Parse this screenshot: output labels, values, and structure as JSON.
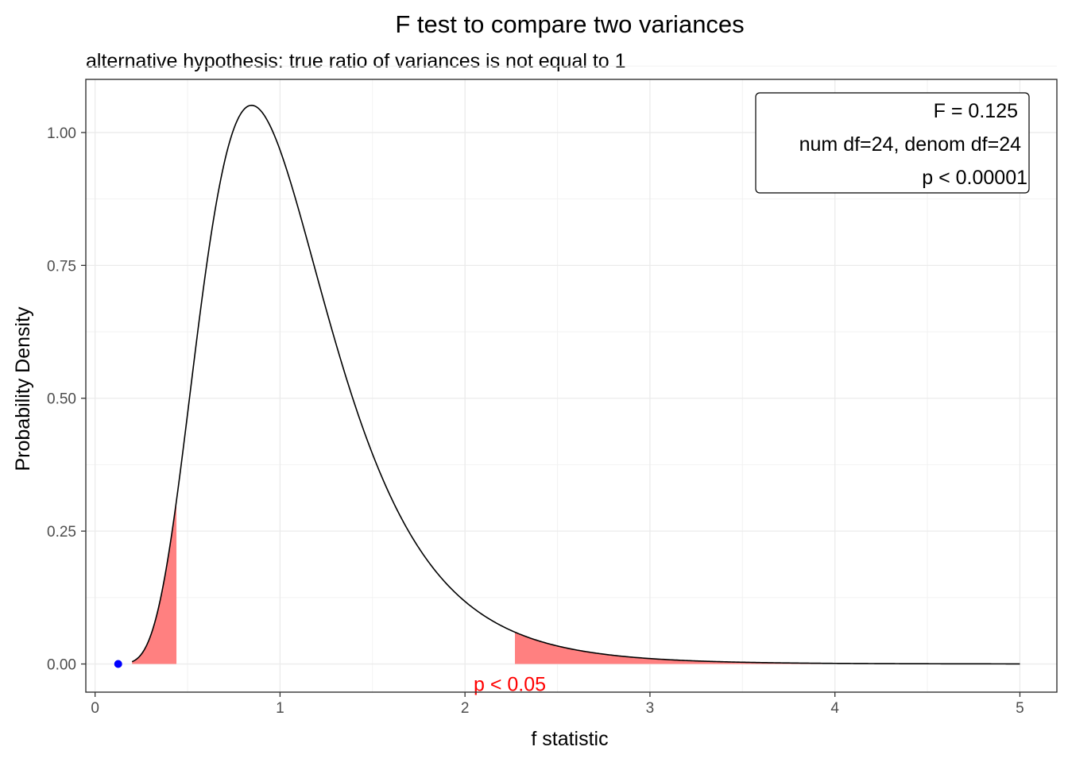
{
  "chart_data": {
    "type": "line",
    "title": "F test to compare two variances",
    "subtitle": "alternative hypothesis: true ratio of variances is not equal to 1",
    "xlabel": "f statistic",
    "ylabel": "Probability Density",
    "xlim": [
      -0.05,
      5.2
    ],
    "ylim": [
      -0.053,
      1.1
    ],
    "x_ticks": [
      0,
      1,
      2,
      3,
      4,
      5
    ],
    "x_tick_labels": [
      "0",
      "1",
      "2",
      "3",
      "4",
      "5"
    ],
    "y_ticks": [
      0.0,
      0.25,
      0.5,
      0.75,
      1.0
    ],
    "y_tick_labels": [
      "0.00",
      "0.25",
      "0.50",
      "0.75",
      "1.00"
    ],
    "grid": true,
    "distribution": {
      "name": "F",
      "df1": 24,
      "df2": 24,
      "x_from": 0.2,
      "x_to": 5.0
    },
    "rejection_regions": [
      {
        "from": 0.2,
        "to": 0.44
      },
      {
        "from": 2.27,
        "to": 5.0
      }
    ],
    "rejection_color": "#ff8080",
    "region_label": "p < 0.05",
    "region_label_color": "#ff0000",
    "region_label_x": 2.27,
    "observed": {
      "x": 0.125,
      "y": 0.0,
      "color": "#0000ff"
    },
    "info_box": {
      "lines": [
        "F = 0.125",
        "num df=24, denom df=24",
        "p < 0.00001"
      ],
      "position": "top-right"
    }
  }
}
